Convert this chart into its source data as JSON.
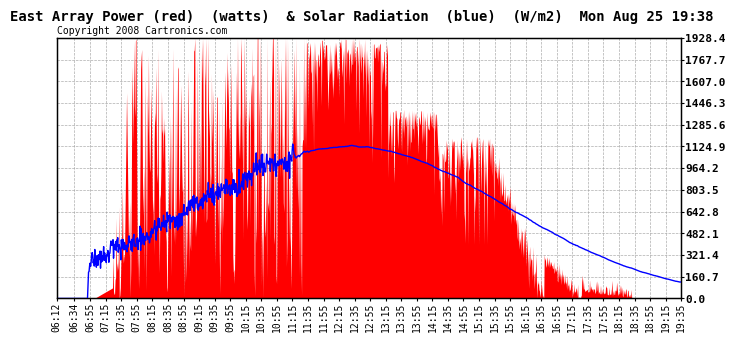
{
  "title": "East Array Power (red)  (watts)  & Solar Radiation  (blue)  (W/m2)  Mon Aug 25 19:38",
  "copyright": "Copyright 2008 Cartronics.com",
  "background_color": "#ffffff",
  "plot_bg_color": "#ffffff",
  "grid_color": "#aaaaaa",
  "ytick_labels": [
    "0.0",
    "160.7",
    "321.4",
    "482.1",
    "642.8",
    "803.5",
    "964.2",
    "1124.9",
    "1285.6",
    "1446.3",
    "1607.0",
    "1767.7",
    "1928.4"
  ],
  "ytick_values": [
    0.0,
    160.7,
    321.4,
    482.1,
    642.8,
    803.5,
    964.2,
    1124.9,
    1285.6,
    1446.3,
    1607.0,
    1767.7,
    1928.4
  ],
  "ymax": 1928.4,
  "ymin": 0.0,
  "xtick_labels": [
    "06:12",
    "06:34",
    "06:55",
    "07:15",
    "07:35",
    "07:55",
    "08:15",
    "08:35",
    "08:55",
    "09:15",
    "09:35",
    "09:55",
    "10:15",
    "10:35",
    "10:55",
    "11:15",
    "11:35",
    "11:55",
    "12:15",
    "12:35",
    "12:55",
    "13:15",
    "13:35",
    "13:55",
    "14:15",
    "14:35",
    "14:55",
    "15:15",
    "15:35",
    "15:55",
    "16:15",
    "16:35",
    "16:55",
    "17:15",
    "17:35",
    "17:55",
    "18:15",
    "18:35",
    "18:55",
    "19:15",
    "19:35"
  ],
  "red_fill_color": "#ff0000",
  "blue_line_color": "#0000ff",
  "title_fontsize": 10,
  "copyright_fontsize": 7,
  "tick_fontsize": 7,
  "ytick_fontsize": 8
}
